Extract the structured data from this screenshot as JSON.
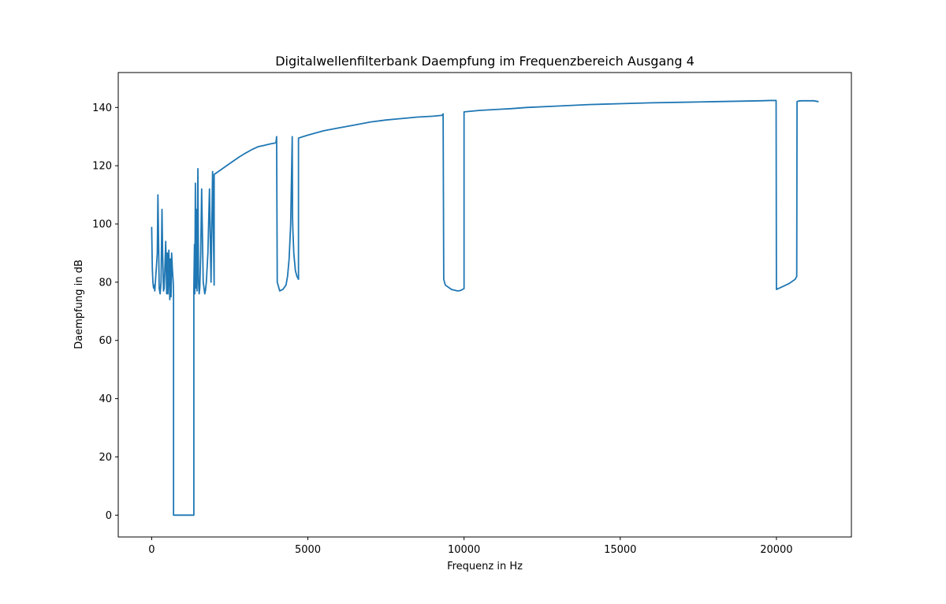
{
  "chart_data": {
    "type": "line",
    "title": "Digitalwellenfilterbank Daempfung im Frequenzbereich Ausgang 4",
    "xlabel": "Frequenz in Hz",
    "ylabel": "Daempfung in dB",
    "xlim": [
      -1070,
      22400
    ],
    "ylim": [
      -7.5,
      152
    ],
    "xticks": [
      0,
      5000,
      10000,
      15000,
      20000
    ],
    "yticks": [
      0,
      20,
      40,
      60,
      80,
      100,
      120,
      140
    ],
    "grid": false,
    "legend": "none",
    "series": [
      {
        "color": "#1f77b4",
        "x": [
          0,
          20,
          40,
          60,
          80,
          100,
          150,
          180,
          200,
          220,
          240,
          270,
          300,
          330,
          350,
          380,
          400,
          420,
          450,
          480,
          500,
          520,
          550,
          580,
          600,
          620,
          640,
          660,
          690,
          700,
          700,
          1350,
          1350,
          1370,
          1380,
          1400,
          1410,
          1430,
          1450,
          1480,
          1500,
          1520,
          1540,
          1570,
          1600,
          1650,
          1700,
          1720,
          1750,
          1800,
          1850,
          1900,
          1950,
          2000,
          2000,
          2200,
          2400,
          2600,
          2800,
          3000,
          3200,
          3400,
          3600,
          3800,
          3950,
          3980,
          4000,
          4020,
          4100,
          4200,
          4300,
          4350,
          4400,
          4450,
          4500,
          4510,
          4520,
          4550,
          4600,
          4650,
          4700,
          4700,
          5000,
          5500,
          6000,
          6500,
          7000,
          7500,
          8000,
          8500,
          9000,
          9300,
          9330,
          9350,
          9400,
          9600,
          9800,
          9900,
          10000,
          10000,
          10500,
          11000,
          11500,
          12000,
          13000,
          14000,
          15000,
          16000,
          17000,
          18000,
          19000,
          19500,
          19800,
          19990,
          20000,
          20200,
          20400,
          20600,
          20650,
          20660,
          20700,
          20800,
          21000,
          21200,
          21350
        ],
        "values": [
          99,
          85,
          80,
          78,
          79,
          77,
          85,
          90,
          110,
          95,
          78,
          76,
          80,
          105,
          90,
          77,
          78,
          84,
          94,
          76,
          90,
          76,
          91,
          74,
          88,
          75,
          90,
          85,
          80,
          76,
          0,
          0,
          78,
          93,
          76,
          114,
          78,
          105,
          77,
          119,
          80,
          76,
          78,
          90,
          112,
          80,
          76,
          77,
          80,
          90,
          112,
          80,
          118,
          79,
          117,
          118.5,
          120,
          121.5,
          123,
          124.3,
          125.5,
          126.5,
          127,
          127.5,
          127.8,
          128,
          130,
          80,
          77,
          77.5,
          79,
          82,
          88,
          100,
          130,
          102,
          98,
          90,
          84,
          82,
          81,
          129.5,
          130.5,
          132,
          133,
          134,
          135,
          135.7,
          136.2,
          136.7,
          137,
          137.3,
          137.8,
          81,
          79,
          77.5,
          77,
          77.2,
          77.8,
          138.5,
          139,
          139.3,
          139.6,
          140,
          140.5,
          141,
          141.3,
          141.6,
          141.8,
          142,
          142.2,
          142.3,
          142.4,
          142.4,
          77.5,
          78.5,
          79.5,
          81,
          82,
          142,
          142.2,
          142.3,
          142.3,
          142.3,
          142
        ]
      }
    ]
  }
}
